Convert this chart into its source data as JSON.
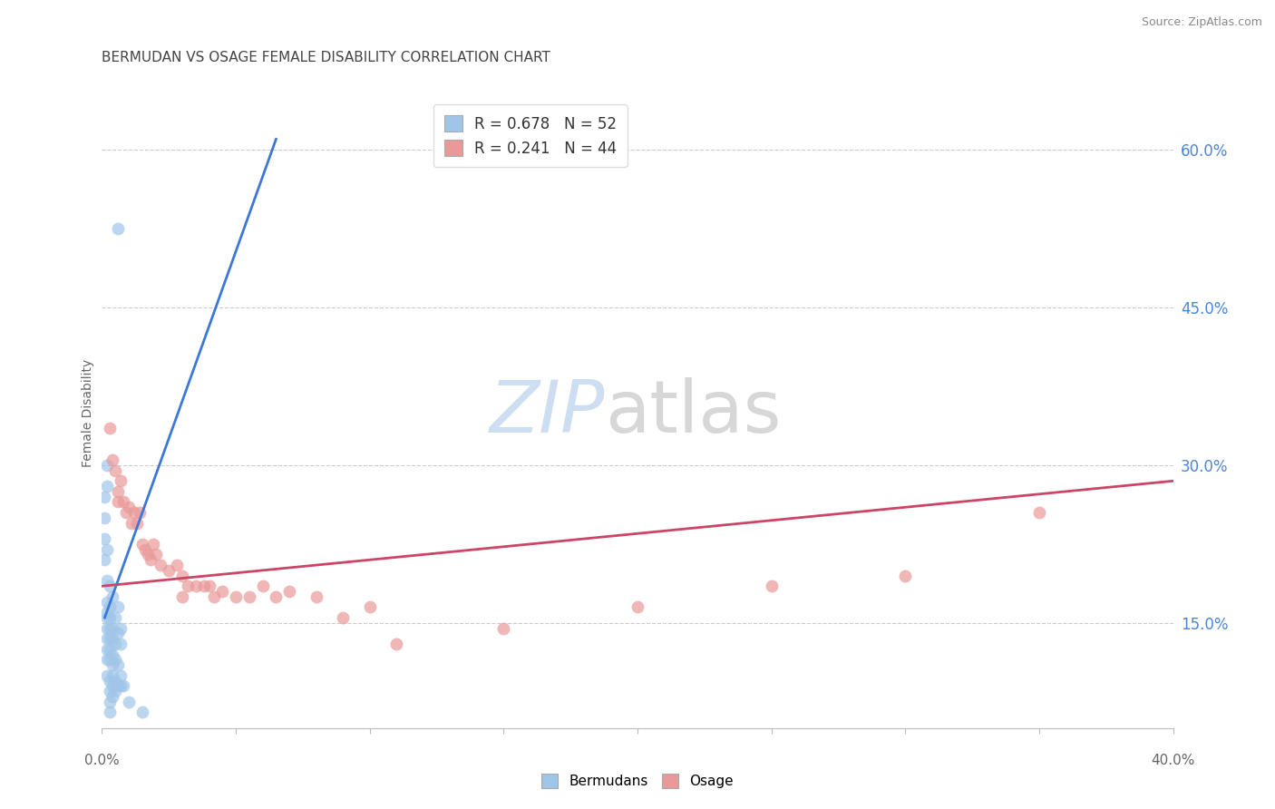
{
  "title": "BERMUDAN VS OSAGE FEMALE DISABILITY CORRELATION CHART",
  "source": "Source: ZipAtlas.com",
  "ylabel": "Female Disability",
  "right_yticks": [
    "60.0%",
    "45.0%",
    "30.0%",
    "15.0%"
  ],
  "right_ytick_vals": [
    0.6,
    0.45,
    0.3,
    0.15
  ],
  "xmin": 0.0,
  "xmax": 0.4,
  "ymin": 0.05,
  "ymax": 0.65,
  "legend_r1_text": "R = 0.678   N = 52",
  "legend_r2_text": "R = 0.241   N = 44",
  "blue_scatter_color": "#9fc5e8",
  "pink_scatter_color": "#ea9999",
  "blue_line_color": "#3c78d8",
  "pink_line_color": "#cc4466",
  "blue_legend_color": "#9fc5e8",
  "pink_legend_color": "#ea9999",
  "grid_color": "#cccccc",
  "background_color": "#ffffff",
  "title_color": "#444444",
  "ytick_color": "#4a86d8",
  "source_color": "#888888",
  "ylabel_color": "#666666",
  "xtick_label_color": "#666666",
  "watermark_zip_color": "#c5d8f0",
  "watermark_atlas_color": "#d0d0d0",
  "bermudans_scatter": [
    [
      0.001,
      0.21
    ],
    [
      0.001,
      0.25
    ],
    [
      0.001,
      0.27
    ],
    [
      0.001,
      0.23
    ],
    [
      0.002,
      0.28
    ],
    [
      0.002,
      0.3
    ],
    [
      0.002,
      0.22
    ],
    [
      0.002,
      0.19
    ],
    [
      0.002,
      0.17
    ],
    [
      0.002,
      0.16
    ],
    [
      0.002,
      0.155
    ],
    [
      0.002,
      0.145
    ],
    [
      0.002,
      0.135
    ],
    [
      0.002,
      0.125
    ],
    [
      0.002,
      0.115
    ],
    [
      0.002,
      0.1
    ],
    [
      0.003,
      0.185
    ],
    [
      0.003,
      0.165
    ],
    [
      0.003,
      0.155
    ],
    [
      0.003,
      0.145
    ],
    [
      0.003,
      0.135
    ],
    [
      0.003,
      0.125
    ],
    [
      0.003,
      0.115
    ],
    [
      0.003,
      0.095
    ],
    [
      0.003,
      0.085
    ],
    [
      0.003,
      0.075
    ],
    [
      0.003,
      0.065
    ],
    [
      0.004,
      0.175
    ],
    [
      0.004,
      0.145
    ],
    [
      0.004,
      0.135
    ],
    [
      0.004,
      0.12
    ],
    [
      0.004,
      0.11
    ],
    [
      0.004,
      0.1
    ],
    [
      0.004,
      0.09
    ],
    [
      0.004,
      0.08
    ],
    [
      0.005,
      0.155
    ],
    [
      0.005,
      0.13
    ],
    [
      0.005,
      0.115
    ],
    [
      0.005,
      0.095
    ],
    [
      0.005,
      0.085
    ],
    [
      0.006,
      0.525
    ],
    [
      0.006,
      0.165
    ],
    [
      0.006,
      0.14
    ],
    [
      0.006,
      0.11
    ],
    [
      0.006,
      0.09
    ],
    [
      0.007,
      0.145
    ],
    [
      0.007,
      0.13
    ],
    [
      0.007,
      0.1
    ],
    [
      0.007,
      0.09
    ],
    [
      0.008,
      0.09
    ],
    [
      0.01,
      0.075
    ],
    [
      0.015,
      0.065
    ]
  ],
  "osage_scatter": [
    [
      0.003,
      0.335
    ],
    [
      0.004,
      0.305
    ],
    [
      0.005,
      0.295
    ],
    [
      0.006,
      0.275
    ],
    [
      0.006,
      0.265
    ],
    [
      0.007,
      0.285
    ],
    [
      0.008,
      0.265
    ],
    [
      0.009,
      0.255
    ],
    [
      0.01,
      0.26
    ],
    [
      0.011,
      0.245
    ],
    [
      0.012,
      0.255
    ],
    [
      0.013,
      0.245
    ],
    [
      0.014,
      0.255
    ],
    [
      0.015,
      0.225
    ],
    [
      0.016,
      0.22
    ],
    [
      0.017,
      0.215
    ],
    [
      0.018,
      0.21
    ],
    [
      0.019,
      0.225
    ],
    [
      0.02,
      0.215
    ],
    [
      0.022,
      0.205
    ],
    [
      0.025,
      0.2
    ],
    [
      0.028,
      0.205
    ],
    [
      0.03,
      0.195
    ],
    [
      0.03,
      0.175
    ],
    [
      0.032,
      0.185
    ],
    [
      0.035,
      0.185
    ],
    [
      0.038,
      0.185
    ],
    [
      0.04,
      0.185
    ],
    [
      0.042,
      0.175
    ],
    [
      0.045,
      0.18
    ],
    [
      0.05,
      0.175
    ],
    [
      0.055,
      0.175
    ],
    [
      0.06,
      0.185
    ],
    [
      0.065,
      0.175
    ],
    [
      0.07,
      0.18
    ],
    [
      0.08,
      0.175
    ],
    [
      0.09,
      0.155
    ],
    [
      0.1,
      0.165
    ],
    [
      0.11,
      0.13
    ],
    [
      0.15,
      0.145
    ],
    [
      0.2,
      0.165
    ],
    [
      0.25,
      0.185
    ],
    [
      0.3,
      0.195
    ],
    [
      0.35,
      0.255
    ]
  ],
  "blue_line_x": [
    0.001,
    0.065
  ],
  "blue_line_y": [
    0.155,
    0.61
  ],
  "pink_line_x": [
    0.0,
    0.4
  ],
  "pink_line_y": [
    0.185,
    0.285
  ],
  "num_xticks": 9
}
